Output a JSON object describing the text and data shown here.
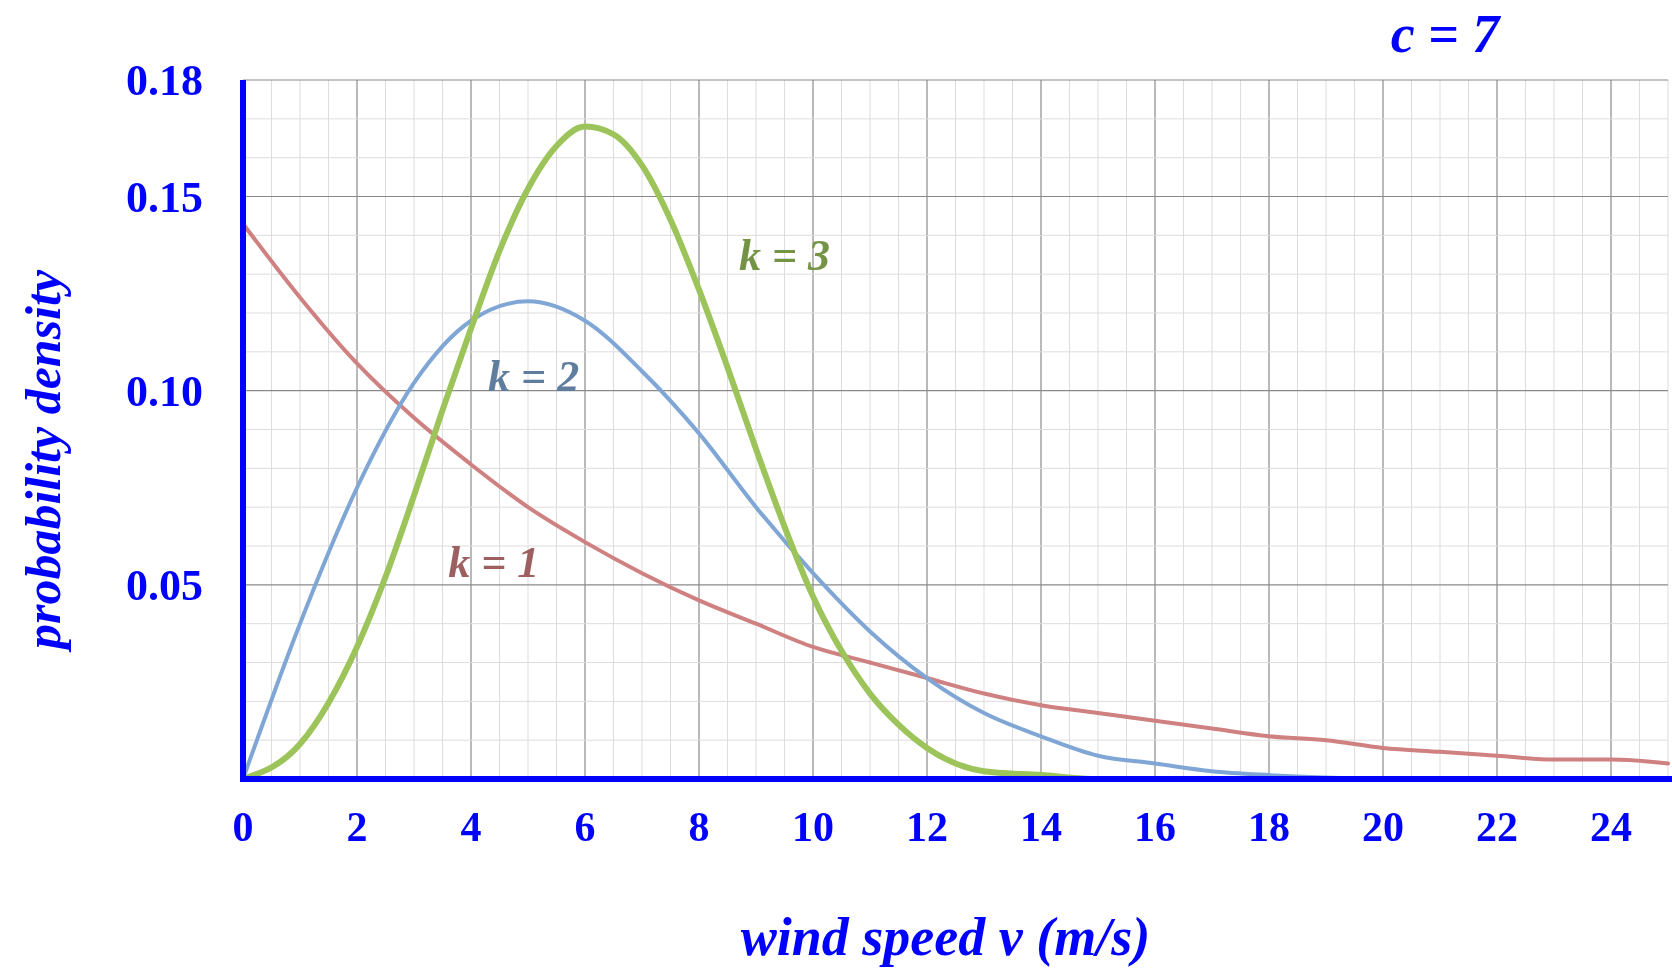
{
  "chart_data": {
    "type": "line",
    "xlabel": "wind speed v (m/s)",
    "ylabel": "probability density",
    "annotations": [
      "c = 7"
    ],
    "xlim": [
      0,
      25
    ],
    "ylim": [
      0,
      0.18
    ],
    "xticks": [
      0,
      2,
      4,
      6,
      8,
      10,
      12,
      14,
      16,
      18,
      20,
      22,
      24
    ],
    "yticks": [
      {
        "value": 0.05,
        "label": "0.05"
      },
      {
        "value": 0.1,
        "label": "0.10"
      },
      {
        "value": 0.15,
        "label": "0.15"
      },
      {
        "value": 0.18,
        "label": "0.18"
      }
    ],
    "grid": true,
    "line_style": "solid",
    "series": [
      {
        "name": "k = 1",
        "color": "#cf8080",
        "x": [
          0,
          1,
          2,
          3,
          4,
          5,
          6,
          7,
          8,
          9,
          10,
          11,
          12,
          13,
          14,
          15,
          16,
          17,
          18,
          19,
          20,
          21,
          22,
          23,
          24,
          25
        ],
        "values": [
          0.143,
          0.124,
          0.107,
          0.093,
          0.081,
          0.07,
          0.061,
          0.053,
          0.046,
          0.04,
          0.034,
          0.03,
          0.026,
          0.022,
          0.019,
          0.017,
          0.015,
          0.013,
          0.011,
          0.01,
          0.008,
          0.007,
          0.006,
          0.005,
          0.005,
          0.004
        ]
      },
      {
        "name": "k = 2",
        "color": "#7fa6d4",
        "x": [
          0,
          1,
          2,
          3,
          4,
          5,
          6,
          7,
          8,
          9,
          10,
          11,
          12,
          13,
          14,
          15,
          16,
          17,
          18,
          20
        ],
        "values": [
          0,
          0.04,
          0.075,
          0.102,
          0.118,
          0.123,
          0.118,
          0.105,
          0.089,
          0.07,
          0.053,
          0.038,
          0.026,
          0.017,
          0.011,
          0.006,
          0.004,
          0.002,
          0.001,
          0.0
        ]
      },
      {
        "name": "k = 3",
        "color": "#9cc45a",
        "x": [
          0,
          1,
          2,
          2.5,
          3,
          3.5,
          4,
          4.5,
          5,
          5.5,
          6,
          6.5,
          7,
          7.5,
          8,
          8.5,
          9,
          9.5,
          10,
          10.5,
          11,
          11.5,
          12,
          13,
          14,
          15,
          16
        ],
        "values": [
          0,
          0.009,
          0.034,
          0.052,
          0.073,
          0.095,
          0.116,
          0.136,
          0.152,
          0.163,
          0.168,
          0.166,
          0.158,
          0.144,
          0.126,
          0.106,
          0.085,
          0.065,
          0.047,
          0.033,
          0.022,
          0.014,
          0.008,
          0.002,
          0.001,
          0.0,
          0.0
        ]
      }
    ]
  }
}
